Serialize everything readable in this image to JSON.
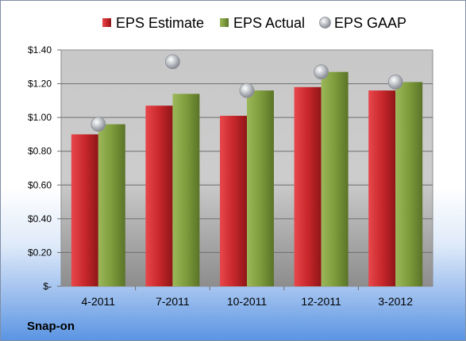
{
  "company": "Snap-on",
  "chart_data": {
    "type": "bar",
    "categories": [
      "4-2011",
      "7-2011",
      "10-2011",
      "12-2011",
      "3-2012"
    ],
    "series": [
      {
        "name": "EPS Estimate",
        "kind": "bar",
        "color": "#c8282c",
        "values": [
          0.9,
          1.07,
          1.01,
          1.18,
          1.16
        ]
      },
      {
        "name": "EPS Actual",
        "kind": "bar",
        "color": "#7e9c3c",
        "values": [
          0.96,
          1.14,
          1.16,
          1.27,
          1.21
        ]
      },
      {
        "name": "EPS GAAP",
        "kind": "marker",
        "color": "#b8bcc2",
        "values": [
          0.96,
          1.33,
          1.16,
          1.27,
          1.21
        ]
      }
    ],
    "ylim": [
      0,
      1.4
    ],
    "yticks": [
      {
        "value": 0,
        "label": "$-"
      },
      {
        "value": 0.2,
        "label": "$0.20"
      },
      {
        "value": 0.4,
        "label": "$0.40"
      },
      {
        "value": 0.6,
        "label": "$0.60"
      },
      {
        "value": 0.8,
        "label": "$0.80"
      },
      {
        "value": 1.0,
        "label": "$1.00"
      },
      {
        "value": 1.2,
        "label": "$1.20"
      },
      {
        "value": 1.4,
        "label": "$1.40"
      }
    ],
    "grid": true,
    "legend": "top"
  }
}
